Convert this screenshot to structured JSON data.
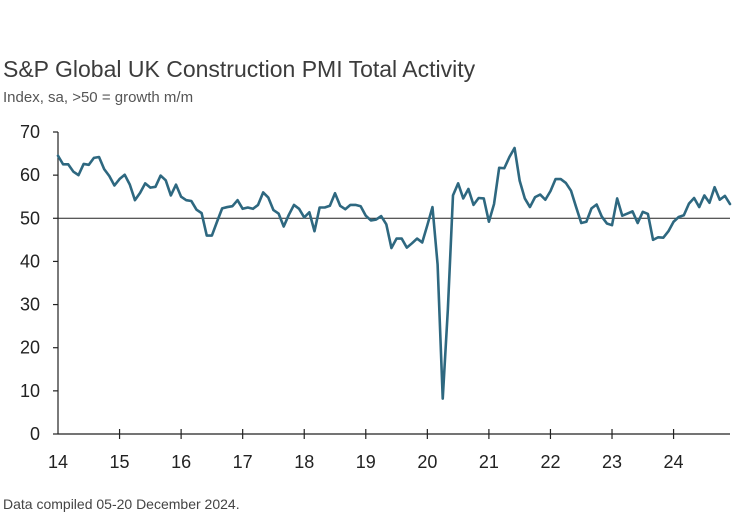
{
  "title": "S&P Global UK Construction PMI Total Activity",
  "subtitle": "Index, sa, >50 = growth m/m",
  "footnote": "Data compiled 05-20 December 2024.",
  "chart_data": {
    "type": "line",
    "title": "S&P Global UK Construction PMI Total Activity",
    "subtitle": "Index, sa, >50 = growth m/m",
    "xlabel": "",
    "ylabel": "",
    "ylim": [
      0,
      70
    ],
    "yticks": [
      "0",
      "10",
      "20",
      "30",
      "40",
      "50",
      "60",
      "70"
    ],
    "xticks": [
      "14",
      "15",
      "16",
      "17",
      "18",
      "19",
      "20",
      "21",
      "22",
      "23",
      "24"
    ],
    "x_start": "2014-01",
    "x_end": "2024-11",
    "grid": false,
    "reference_line": 50,
    "line_color": "#2e6880",
    "series": [
      {
        "values": [
          64.5,
          62.5,
          62.5,
          60.8,
          60.0,
          62.6,
          62.4,
          64.0,
          64.2,
          61.4,
          59.8,
          57.6,
          59.1,
          60.1,
          57.8,
          54.2,
          55.9,
          58.1,
          57.1,
          57.3,
          59.9,
          58.8,
          55.3,
          57.8,
          55.0,
          54.2,
          54.0,
          52.0,
          51.2,
          46.0,
          46.0,
          49.2,
          52.3,
          52.6,
          52.8,
          54.2,
          52.2,
          52.5,
          52.2,
          53.1,
          56.0,
          54.8,
          51.9,
          51.1,
          48.1,
          50.8,
          53.1,
          52.2,
          50.2,
          51.4,
          47.0,
          52.5,
          52.5,
          52.9,
          55.8,
          52.9,
          52.1,
          53.1,
          53.1,
          52.8,
          50.6,
          49.5,
          49.7,
          50.5,
          48.6,
          43.1,
          45.3,
          45.3,
          43.2,
          44.2,
          45.3,
          44.4,
          48.4,
          52.6,
          39.3,
          8.2,
          28.9,
          55.3,
          58.1,
          54.6,
          56.8,
          53.1,
          54.7,
          54.6,
          49.2,
          53.3,
          61.7,
          61.6,
          64.2,
          66.3,
          58.7,
          54.6,
          52.6,
          54.9,
          55.5,
          54.3,
          56.3,
          59.1,
          59.1,
          58.2,
          56.4,
          52.6,
          48.9,
          49.2,
          52.3,
          53.2,
          50.4,
          48.8,
          48.4,
          54.6,
          50.6,
          51.1,
          51.6,
          48.9,
          51.5,
          51.0,
          45.0,
          45.6,
          45.5,
          47.0,
          49.2,
          50.3,
          50.7,
          53.4,
          54.7,
          52.6,
          55.3,
          53.6,
          57.2,
          54.3,
          55.2,
          53.3
        ]
      }
    ]
  }
}
